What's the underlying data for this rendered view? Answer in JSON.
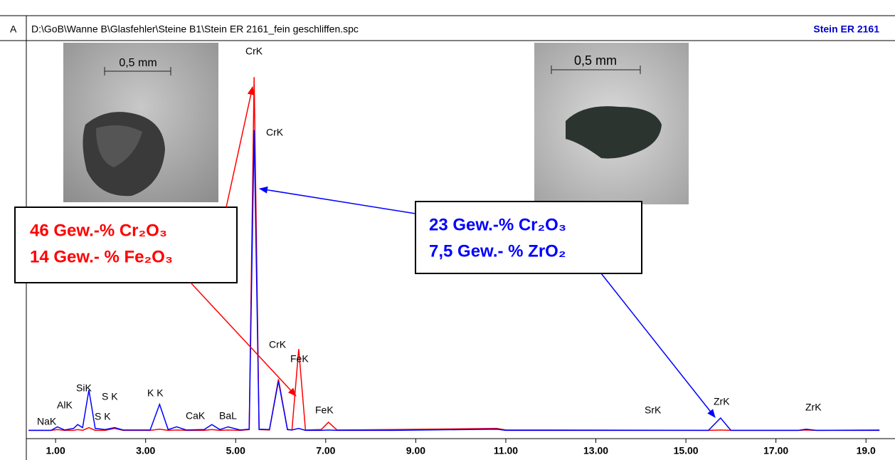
{
  "header": {
    "panel": "A",
    "path": "D:\\GoB\\Wanne B\\Glasfehler\\Steine B1\\Stein ER 2161_fein geschliffen.spc",
    "sample": "Stein ER 2161"
  },
  "chart_data": {
    "type": "line",
    "x": [
      0.4,
      0.9,
      1.04,
      1.2,
      1.4,
      1.49,
      1.6,
      1.74,
      1.88,
      2.1,
      2.31,
      2.5,
      3.1,
      3.31,
      3.5,
      3.69,
      3.9,
      4.3,
      4.47,
      4.65,
      4.83,
      5.1,
      5.3,
      5.41,
      5.52,
      5.75,
      5.95,
      6.15,
      6.25,
      6.4,
      6.55,
      6.9,
      7.06,
      7.25,
      8.5,
      10.8,
      11.0,
      12.0,
      15.5,
      15.77,
      16.0,
      17.5,
      17.67,
      17.9,
      19.3
    ],
    "series": [
      {
        "color": "#ff0000",
        "values": [
          0.3,
          0.3,
          0.5,
          0.3,
          0.3,
          0.5,
          0.3,
          1.0,
          0.3,
          0.3,
          0.8,
          0.3,
          0.3,
          0.6,
          0.3,
          0.4,
          0.3,
          0.3,
          0.5,
          0.3,
          0.4,
          0.3,
          0.5,
          91.5,
          0.5,
          0.4,
          13.5,
          0.5,
          0.4,
          21.3,
          0.4,
          0.5,
          2.4,
          0.4,
          0.5,
          0.8,
          0.4,
          0.4,
          0.3,
          0.4,
          0.3,
          0.3,
          0.4,
          0.3,
          0.4
        ]
      },
      {
        "color": "#0000ff",
        "values": [
          0.3,
          0.3,
          1.2,
          0.4,
          0.8,
          1.8,
          1.0,
          10.7,
          0.8,
          0.5,
          1.0,
          0.4,
          0.4,
          7.0,
          0.5,
          1.2,
          0.4,
          0.5,
          1.8,
          0.5,
          1.2,
          0.4,
          0.6,
          77.8,
          0.6,
          0.5,
          13,
          0.5,
          0.4,
          0.8,
          0.3,
          0.3,
          0.4,
          0.3,
          0.3,
          0.6,
          0.3,
          0.3,
          0.3,
          3.5,
          0.3,
          0.3,
          0.6,
          0.3,
          0.3
        ]
      }
    ],
    "xlim": [
      0.35,
      19.36
    ],
    "xticks": [
      {
        "value": 1,
        "label": "1.00"
      },
      {
        "value": 3,
        "label": "3.00"
      },
      {
        "value": 5,
        "label": "5.00"
      },
      {
        "value": 7,
        "label": "7.00"
      },
      {
        "value": 9,
        "label": "9.00"
      },
      {
        "value": 11,
        "label": "11.00"
      },
      {
        "value": 13,
        "label": "13.00"
      },
      {
        "value": 15,
        "label": "15.00"
      },
      {
        "value": 17,
        "label": "17.00"
      },
      {
        "value": 19,
        "label": "19.0"
      }
    ],
    "ylim": [
      0,
      100
    ],
    "peak_labels": [
      "NaK",
      "AlK",
      "SiK",
      "S K",
      "S K",
      "K K",
      "CaK",
      "BaL",
      "CrK",
      "CrK",
      "CrK",
      "FeK",
      "FeK",
      "SrK",
      "ZrK",
      "ZrK"
    ],
    "annotations": {
      "red": [
        "46 Gew.-% Cr₂O₃",
        "14 Gew.- % Fe₂O₃"
      ],
      "blue": [
        "23 Gew.-% Cr₂O₃",
        "7,5 Gew.- % ZrO₂"
      ]
    },
    "photo_scales": [
      "0,5 mm",
      "0,5 mm"
    ]
  }
}
